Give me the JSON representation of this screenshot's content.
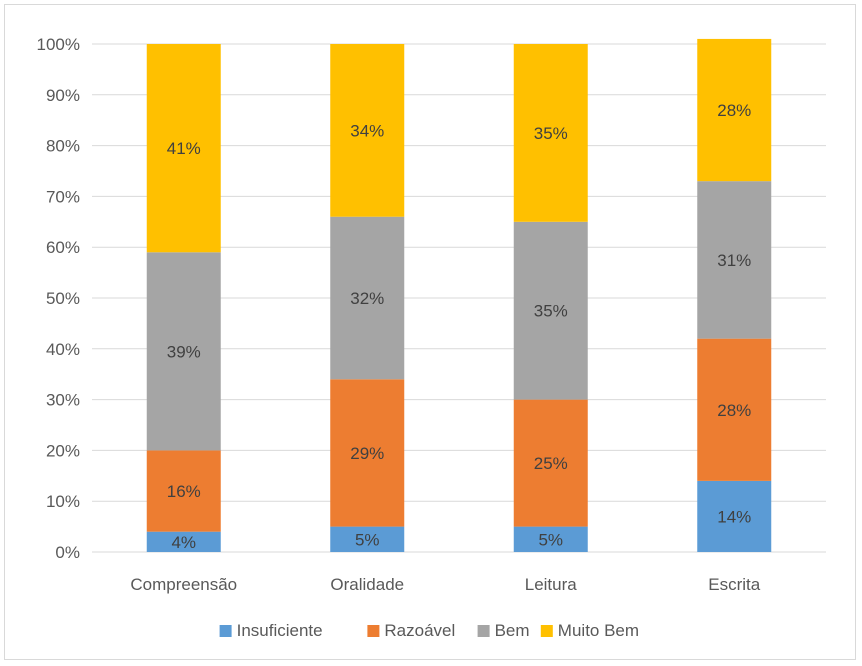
{
  "chart_data": {
    "type": "bar",
    "stacked": true,
    "percent": true,
    "categories": [
      "Compreensão",
      "Oralidade",
      "Leitura",
      "Escrita"
    ],
    "series": [
      {
        "name": "Insuficiente",
        "color": "#5B9BD5",
        "values": [
          4,
          5,
          5,
          14
        ],
        "labels": [
          "4%",
          "5%",
          "5%",
          "14%"
        ]
      },
      {
        "name": "Razoável",
        "color": "#ED7D31",
        "values": [
          16,
          29,
          25,
          28
        ],
        "labels": [
          "16%",
          "29%",
          "25%",
          "28%"
        ]
      },
      {
        "name": "Bem",
        "color": "#A5A5A5",
        "values": [
          39,
          32,
          35,
          31
        ],
        "labels": [
          "39%",
          "32%",
          "35%",
          "31%"
        ]
      },
      {
        "name": "Muito Bem",
        "color": "#FFC000",
        "values": [
          41,
          34,
          35,
          28
        ],
        "labels": [
          "41%",
          "34%",
          "35%",
          "28%"
        ]
      }
    ],
    "ylim": [
      0,
      100
    ],
    "yticks": [
      "0%",
      "10%",
      "20%",
      "30%",
      "40%",
      "50%",
      "60%",
      "70%",
      "80%",
      "90%",
      "100%"
    ],
    "grid": true,
    "legend_position": "bottom"
  }
}
